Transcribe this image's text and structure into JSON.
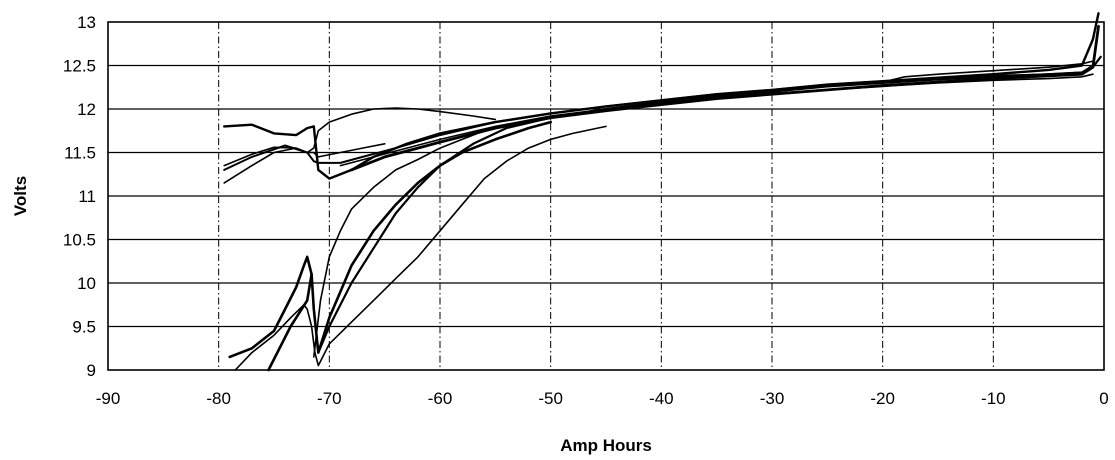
{
  "chart_data": {
    "type": "line",
    "title": "",
    "xlabel": "Amp Hours",
    "ylabel": "Volts",
    "xlim": [
      -90,
      0
    ],
    "ylim": [
      9,
      13
    ],
    "x_ticks": [
      -90,
      -80,
      -70,
      -60,
      -50,
      -40,
      -30,
      -20,
      -10,
      0
    ],
    "y_ticks": [
      9,
      9.5,
      10,
      10.5,
      11,
      11.5,
      12,
      12.5,
      13
    ],
    "x_tick_labels": [
      "-90",
      "-80",
      "-70",
      "-60",
      "-50",
      "-40",
      "-30",
      "-20",
      "-10",
      "0"
    ],
    "y_tick_labels": [
      "9",
      "9.5",
      "10",
      "10.5",
      "11",
      "11.5",
      "12",
      "12.5",
      "13"
    ],
    "grid": {
      "horizontal": "solid",
      "vertical": "dash-dot"
    },
    "legend": "none",
    "line_color": "#000000",
    "series": [
      {
        "x": [
          -79.5,
          -77,
          -75,
          -73,
          -72,
          -71.4,
          -71,
          -70,
          -68,
          -66,
          -63,
          -60,
          -55,
          -50,
          -45,
          -40,
          -35,
          -30,
          -25,
          -20,
          -15,
          -10,
          -5,
          -2,
          -1,
          -0.5
        ],
        "y": [
          11.8,
          11.82,
          11.72,
          11.7,
          11.78,
          11.8,
          11.3,
          11.2,
          11.3,
          11.45,
          11.6,
          11.72,
          11.85,
          11.95,
          12.03,
          12.1,
          12.17,
          12.22,
          12.28,
          12.32,
          12.36,
          12.4,
          12.45,
          12.5,
          12.8,
          13.1
        ]
      },
      {
        "x": [
          -79.5,
          -77,
          -75,
          -73,
          -72,
          -71.4,
          -71,
          -70,
          -68,
          -66,
          -64,
          -62,
          -60,
          -57,
          -55
        ],
        "y": [
          11.35,
          11.48,
          11.56,
          11.55,
          11.5,
          11.55,
          11.75,
          11.85,
          11.94,
          12.0,
          12.01,
          12.0,
          11.97,
          11.92,
          11.88
        ]
      },
      {
        "x": [
          -79.5,
          -77,
          -74,
          -72,
          -71.4,
          -71,
          -69,
          -67,
          -64,
          -60,
          -55,
          -50,
          -45,
          -40,
          -35,
          -30,
          -25,
          -20,
          -15,
          -10,
          -5,
          -2,
          -1
        ],
        "y": [
          11.3,
          11.45,
          11.58,
          11.5,
          11.4,
          11.38,
          11.38,
          11.45,
          11.55,
          11.7,
          11.85,
          11.95,
          12.03,
          12.1,
          12.17,
          12.22,
          12.28,
          12.32,
          12.35,
          12.38,
          12.4,
          12.42,
          12.5
        ]
      },
      {
        "x": [
          -79.5,
          -77,
          -75,
          -73,
          -72,
          -71.4,
          -71,
          -69,
          -67,
          -65
        ],
        "y": [
          11.15,
          11.35,
          11.5,
          11.55,
          11.5,
          11.5,
          11.45,
          11.5,
          11.55,
          11.6
        ]
      },
      {
        "x": [
          -79,
          -77,
          -75,
          -74,
          -73,
          -72.3,
          -72,
          -71.6
        ],
        "y": [
          9.15,
          9.25,
          9.45,
          9.7,
          9.95,
          10.2,
          10.3,
          10.1
        ]
      },
      {
        "x": [
          -78.5,
          -77,
          -75,
          -73.5,
          -72.3,
          -72,
          -71.6,
          -71.3,
          -71,
          -70,
          -68,
          -66,
          -64,
          -62,
          -60,
          -58,
          -56,
          -54,
          -52,
          -50,
          -48,
          -45
        ],
        "y": [
          9.0,
          9.2,
          9.4,
          9.6,
          9.75,
          9.7,
          9.5,
          9.2,
          9.05,
          9.3,
          9.55,
          9.8,
          10.05,
          10.3,
          10.6,
          10.9,
          11.2,
          11.4,
          11.55,
          11.65,
          11.72,
          11.8
        ]
      },
      {
        "x": [
          -75.5,
          -73.5,
          -72,
          -71.6,
          -71.4,
          -71,
          -70,
          -68,
          -66,
          -64,
          -62,
          -60,
          -58,
          -55,
          -52,
          -50
        ],
        "y": [
          9.0,
          9.5,
          9.8,
          10.1,
          9.7,
          9.2,
          9.6,
          10.2,
          10.6,
          10.9,
          11.15,
          11.35,
          11.5,
          11.65,
          11.78,
          11.85
        ]
      },
      {
        "x": [
          -71.4,
          -70.8,
          -70,
          -69,
          -68,
          -66,
          -64,
          -62,
          -60,
          -58,
          -56
        ],
        "y": [
          9.15,
          9.8,
          10.3,
          10.6,
          10.85,
          11.1,
          11.3,
          11.42,
          11.55,
          11.65,
          11.75
        ]
      },
      {
        "x": [
          -71,
          -70,
          -69,
          -68,
          -66,
          -64,
          -62,
          -60,
          -57,
          -54,
          -50,
          -45,
          -40,
          -35,
          -30,
          -25,
          -20,
          -15,
          -10,
          -5,
          -2,
          -1,
          -0.3
        ],
        "y": [
          9.2,
          9.5,
          9.75,
          10.0,
          10.4,
          10.8,
          11.1,
          11.35,
          11.6,
          11.78,
          11.9,
          12.0,
          12.08,
          12.15,
          12.2,
          12.26,
          12.3,
          12.34,
          12.37,
          12.4,
          12.42,
          12.48,
          12.6
        ]
      },
      {
        "x": [
          -69,
          -66,
          -63,
          -60,
          -55,
          -50,
          -45,
          -40,
          -35,
          -30,
          -25,
          -20,
          -15,
          -10,
          -5,
          -2,
          -1
        ],
        "y": [
          11.35,
          11.45,
          11.55,
          11.65,
          11.8,
          11.92,
          12.0,
          12.07,
          12.13,
          12.18,
          12.22,
          12.26,
          12.3,
          12.33,
          12.35,
          12.37,
          12.4
        ]
      },
      {
        "x": [
          -68,
          -65,
          -62,
          -60,
          -55,
          -50,
          -45,
          -40,
          -35,
          -30,
          -25,
          -20,
          -15,
          -10,
          -5,
          -2,
          -1,
          -0.5
        ],
        "y": [
          11.3,
          11.45,
          11.55,
          11.62,
          11.78,
          11.9,
          11.98,
          12.05,
          12.12,
          12.17,
          12.22,
          12.27,
          12.31,
          12.35,
          12.38,
          12.4,
          12.48,
          12.95
        ]
      },
      {
        "x": [
          -45,
          -40,
          -35,
          -30,
          -25,
          -20,
          -18,
          -15,
          -10,
          -5,
          -2,
          -1
        ],
        "y": [
          12.0,
          12.07,
          12.14,
          12.2,
          12.26,
          12.31,
          12.37,
          12.4,
          12.44,
          12.48,
          12.52,
          12.55
        ]
      }
    ]
  }
}
